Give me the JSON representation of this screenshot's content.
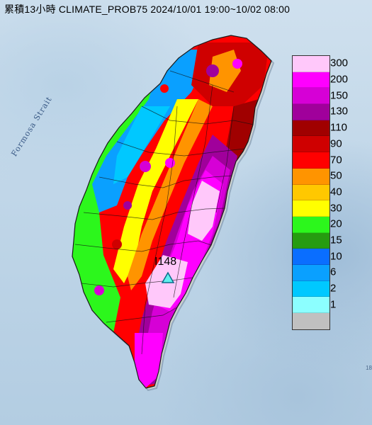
{
  "title": "累積13小時 CLIMATE_PROB75 2024/10/01 19:00~10/02 08:00",
  "strait_label": "Formosa Strait",
  "station": {
    "label": "I148",
    "marker_color": "#5ff0ee"
  },
  "legend": {
    "items": [
      {
        "label": "300",
        "color": "#ffc8fa"
      },
      {
        "label": "200",
        "color": "#ff00ff"
      },
      {
        "label": "150",
        "color": "#d600d6"
      },
      {
        "label": "130",
        "color": "#a0009b"
      },
      {
        "label": "110",
        "color": "#a00000"
      },
      {
        "label": "90",
        "color": "#cf0000"
      },
      {
        "label": "70",
        "color": "#ff0000"
      },
      {
        "label": "50",
        "color": "#ff9400"
      },
      {
        "label": "40",
        "color": "#ffc800"
      },
      {
        "label": "30",
        "color": "#ffff00"
      },
      {
        "label": "20",
        "color": "#2cf71c"
      },
      {
        "label": "15",
        "color": "#269c10"
      },
      {
        "label": "10",
        "color": "#0a6eff"
      },
      {
        "label": "6",
        "color": "#0aa0ff"
      },
      {
        "label": "2",
        "color": "#00c8ff"
      },
      {
        "label": "1",
        "color": "#8cffff"
      },
      {
        "label": "",
        "color": "#c0c0c0"
      }
    ]
  },
  "edge_mark": "18"
}
